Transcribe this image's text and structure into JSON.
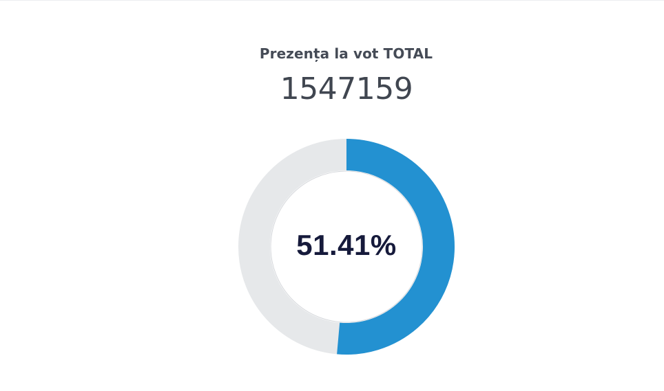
{
  "header": {
    "title": "Prezența la vot TOTAL",
    "total_count": "1547159"
  },
  "chart_data": {
    "type": "pie",
    "variant": "donut",
    "title": "Prezența la vot TOTAL",
    "slices": [
      {
        "value": 51.41
      },
      {
        "value": 48.59
      }
    ],
    "center_label": "51.41%",
    "colors": {
      "filled": "#2391d1",
      "remaining": "#e6e8ea",
      "inner_outline": "#d6d8dc"
    }
  }
}
